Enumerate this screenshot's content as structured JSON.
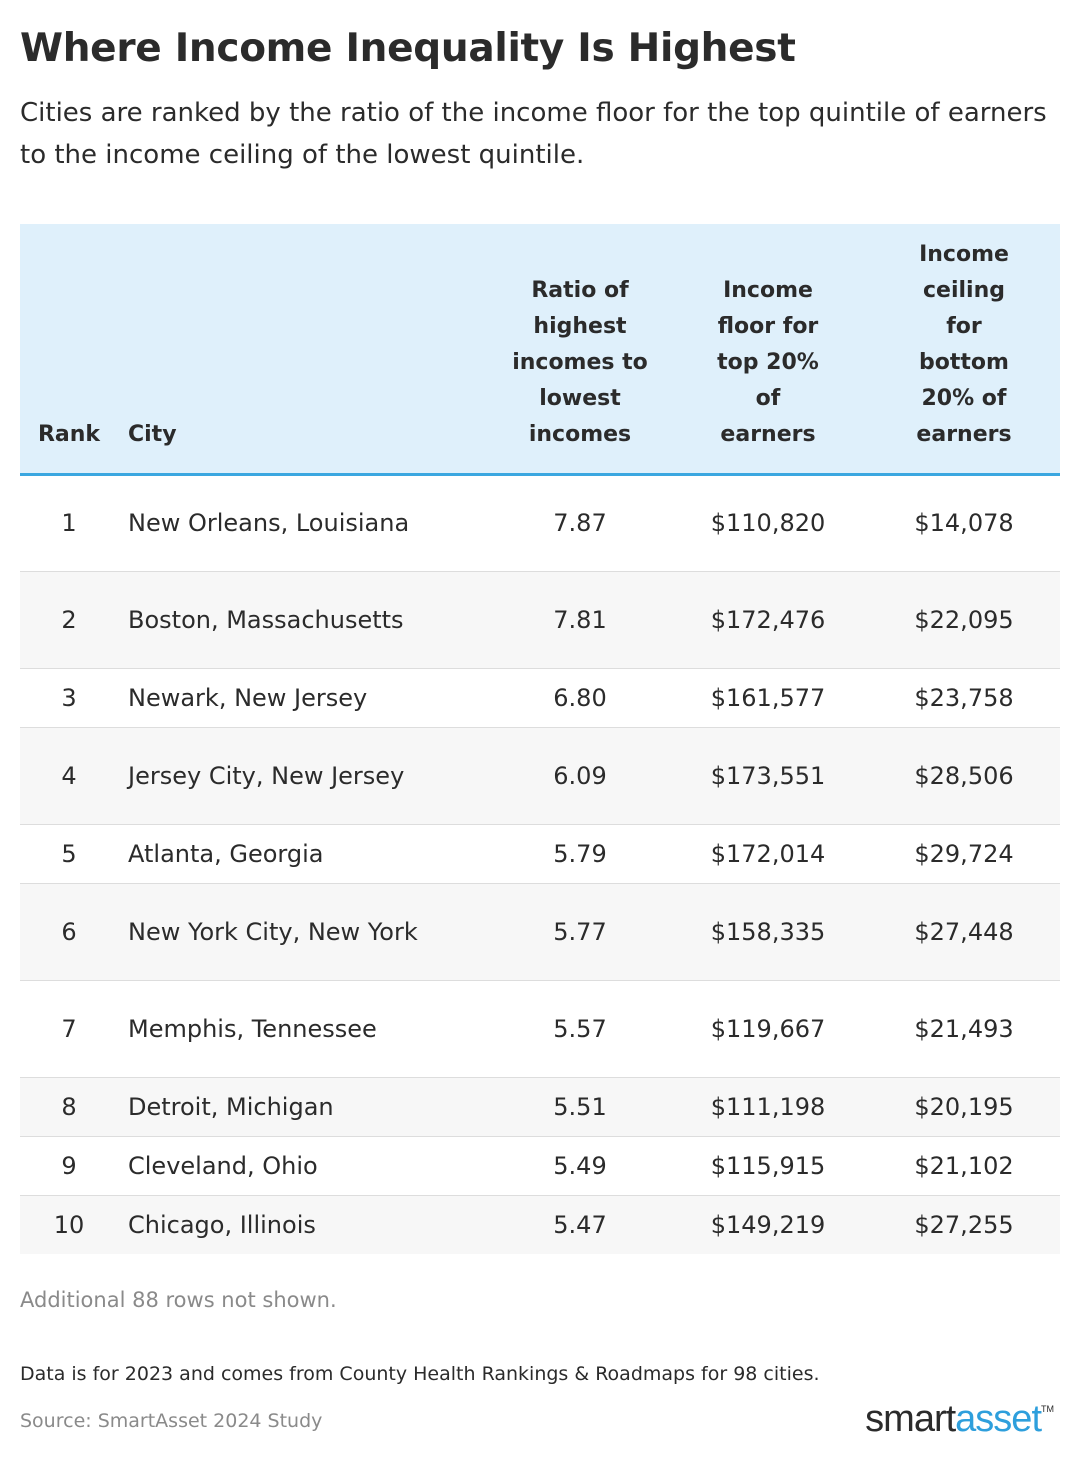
{
  "header": {
    "title": "Where Income Inequality Is Highest",
    "subtitle": "Cities are ranked by the ratio of the income floor for the top quintile of earners to the income ceiling of the lowest quintile."
  },
  "table": {
    "columns": {
      "rank": "Rank",
      "city": "City",
      "ratio": "Ratio of highest incomes to lowest incomes",
      "floor": "Income floor for top 20% of earners",
      "ceiling": "Income ceiling for bottom 20% of earners"
    },
    "rows": [
      {
        "rank": "1",
        "city": "New Orleans, Louisiana",
        "ratio": "7.87",
        "floor": "$110,820",
        "ceiling": "$14,078"
      },
      {
        "rank": "2",
        "city": "Boston, Massachusetts",
        "ratio": "7.81",
        "floor": "$172,476",
        "ceiling": "$22,095"
      },
      {
        "rank": "3",
        "city": "Newark, New Jersey",
        "ratio": "6.80",
        "floor": "$161,577",
        "ceiling": "$23,758"
      },
      {
        "rank": "4",
        "city": "Jersey City, New Jersey",
        "ratio": "6.09",
        "floor": "$173,551",
        "ceiling": "$28,506"
      },
      {
        "rank": "5",
        "city": "Atlanta, Georgia",
        "ratio": "5.79",
        "floor": "$172,014",
        "ceiling": "$29,724"
      },
      {
        "rank": "6",
        "city": "New York City, New York",
        "ratio": "5.77",
        "floor": "$158,335",
        "ceiling": "$27,448"
      },
      {
        "rank": "7",
        "city": "Memphis, Tennessee",
        "ratio": "5.57",
        "floor": "$119,667",
        "ceiling": "$21,493"
      },
      {
        "rank": "8",
        "city": "Detroit, Michigan",
        "ratio": "5.51",
        "floor": "$111,198",
        "ceiling": "$20,195"
      },
      {
        "rank": "9",
        "city": "Cleveland, Ohio",
        "ratio": "5.49",
        "floor": "$115,915",
        "ceiling": "$21,102"
      },
      {
        "rank": "10",
        "city": "Chicago, Illinois",
        "ratio": "5.47",
        "floor": "$149,219",
        "ceiling": "$27,255"
      }
    ]
  },
  "footer": {
    "rows_note": "Additional 88 rows not shown.",
    "note": "Data is for 2023 and comes from County Health Rankings & Roadmaps for 98 cities.",
    "source": "Source: SmartAsset 2024 Study",
    "brand_part1": "smart",
    "brand_part2": "asset",
    "brand_tm": "TM"
  },
  "colors": {
    "header_bg": "#dff0fb",
    "header_rule": "#3aa7e0",
    "brand_accent": "#2e9fdc",
    "text": "#2b2b2b",
    "muted": "#8a8a8a"
  }
}
